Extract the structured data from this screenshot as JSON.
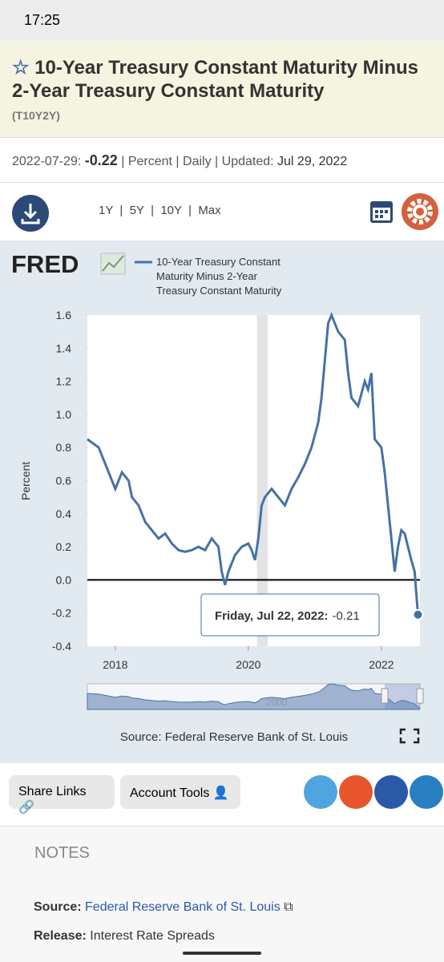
{
  "status_bar": {
    "time": "17:25"
  },
  "header": {
    "title": "10-Year Treasury Constant Maturity Minus 2-Year Treasury Constant Maturity",
    "series_id": "(T10Y2Y)"
  },
  "summary": {
    "date": "2022-07-29:",
    "value": "-0.22",
    "units": "| Percent | Daily | Updated:",
    "updated": "Jul 29, 2022"
  },
  "ranges": [
    "1Y",
    "5Y",
    "10Y",
    "Max"
  ],
  "chart_data": {
    "type": "line",
    "logo": "FRED",
    "ylabel": "Percent",
    "source": "Source: Federal Reserve Bank of St. Louis",
    "navigator_label": "2000",
    "xlim": [
      2017.58,
      2022.58
    ],
    "xticks": [
      2018,
      2020,
      2022
    ],
    "ylim": [
      -0.4,
      1.6
    ],
    "yticks": [
      -0.4,
      -0.2,
      {
        "value": 0,
        "label": "0.0"
      },
      0.2,
      0.4,
      0.6,
      0.8,
      {
        "value": 1,
        "label": "1.0"
      },
      1.2,
      1.4,
      1.6
    ],
    "shaded": [
      2020.13,
      2020.29
    ],
    "tooltip": {
      "label": "Friday, Jul 22, 2022:",
      "value": -0.21,
      "x": 2022.55
    },
    "x": [
      2017.58,
      2017.75,
      2017.9,
      2018.0,
      2018.1,
      2018.2,
      2018.25,
      2018.35,
      2018.45,
      2018.55,
      2018.65,
      2018.75,
      2018.85,
      2018.95,
      2019.05,
      2019.15,
      2019.25,
      2019.35,
      2019.45,
      2019.55,
      2019.6,
      2019.65,
      2019.7,
      2019.8,
      2019.9,
      2020.0,
      2020.05,
      2020.1,
      2020.15,
      2020.2,
      2020.25,
      2020.35,
      2020.45,
      2020.55,
      2020.65,
      2020.75,
      2020.85,
      2020.95,
      2021.05,
      2021.1,
      2021.2,
      2021.25,
      2021.35,
      2021.45,
      2021.5,
      2021.55,
      2021.65,
      2021.75,
      2021.8,
      2021.85,
      2021.9,
      2022.0,
      2022.05,
      2022.1,
      2022.15,
      2022.2,
      2022.25,
      2022.3,
      2022.35,
      2022.4,
      2022.45,
      2022.5,
      2022.55,
      2022.57
    ],
    "series": [
      {
        "name": "10-Year Treasury Constant Maturity Minus 2-Year Treasury Constant Maturity",
        "color": "#4572a7",
        "values": [
          0.85,
          0.8,
          0.65,
          0.55,
          0.65,
          0.6,
          0.5,
          0.45,
          0.35,
          0.3,
          0.25,
          0.28,
          0.22,
          0.18,
          0.17,
          0.18,
          0.2,
          0.18,
          0.25,
          0.2,
          0.05,
          -0.03,
          0.05,
          0.15,
          0.2,
          0.22,
          0.18,
          0.12,
          0.25,
          0.45,
          0.5,
          0.55,
          0.5,
          0.45,
          0.55,
          0.62,
          0.7,
          0.8,
          0.95,
          1.1,
          1.55,
          1.6,
          1.5,
          1.45,
          1.25,
          1.1,
          1.05,
          1.2,
          1.15,
          1.25,
          0.85,
          0.8,
          0.65,
          0.45,
          0.25,
          0.05,
          0.2,
          0.3,
          0.28,
          0.2,
          0.12,
          0.05,
          -0.21,
          -0.22
        ]
      }
    ]
  },
  "buttons": [
    "Share Links",
    "Account Tools"
  ],
  "notes": {
    "heading": "NOTES",
    "source_label": "Source:",
    "source": "Federal Reserve Bank of St. Louis",
    "release_label": "Release:",
    "release": "Interest Rate Spreads"
  }
}
